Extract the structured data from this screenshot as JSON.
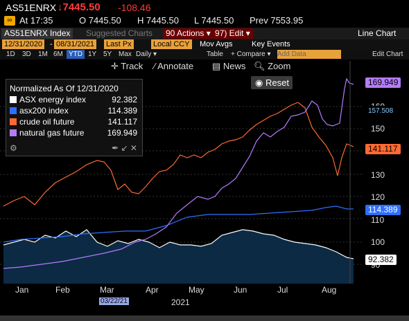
{
  "header": {
    "ticker": "AS51ENRX",
    "price": "7445.50",
    "change": "-108.46",
    "at": "At 17:35",
    "open": "O 7445.50",
    "high": "H 7445.50",
    "low": "L 7445.50",
    "prev": "Prev 7553.95"
  },
  "toolbar": {
    "index_label": "AS51ENRX Index",
    "suggested": "Suggested Charts",
    "actions": "90 Actions ▾",
    "edit": "97) Edit ▾",
    "chart_type": "Line Chart"
  },
  "datebar": {
    "start": "12/31/2020",
    "end": "08/31/2021",
    "px": "Last Px",
    "ccy": "Local CCY",
    "mov": "Mov Avgs",
    "key": "Key Events"
  },
  "periodbar": {
    "periods": [
      "1D",
      "3D",
      "1M",
      "6M",
      "YTD",
      "1Y",
      "5Y",
      "Max"
    ],
    "freq": "Daily ▾",
    "table": "Table",
    "compare": "+ Compare ▾",
    "add": "Add Data",
    "edit": "Edit Chart"
  },
  "tools": {
    "track": "Track",
    "annotate": "Annotate",
    "news": "News",
    "zoom": "Zoom",
    "reset": "Reset"
  },
  "legend": {
    "title": "Normalized As Of 12/31/2020",
    "items": [
      {
        "name": "ASX energy index",
        "value": "92.382",
        "color": "#ffffff"
      },
      {
        "name": "asx200 index",
        "value": "114.389",
        "color": "#2f6fff"
      },
      {
        "name": "crude oil future",
        "value": "141.117",
        "color": "#ff6a33"
      },
      {
        "name": "natural gas future",
        "value": "169.949",
        "color": "#b57cff"
      }
    ]
  },
  "chart_data": {
    "type": "line",
    "y_ticks": [
      "160",
      "150",
      "140",
      "130",
      "120",
      "110",
      "100",
      "90"
    ],
    "x_ticks": [
      "Jan",
      "Feb",
      "Mar",
      "Apr",
      "May",
      "Jun",
      "Jul",
      "Aug"
    ],
    "year": "2021",
    "cursor_date": "03/22/21",
    "tags": {
      "gas": "169.949",
      "crossover": "157.508",
      "oil": "141.117",
      "asx200": "114.389",
      "energy": "92.382"
    }
  }
}
